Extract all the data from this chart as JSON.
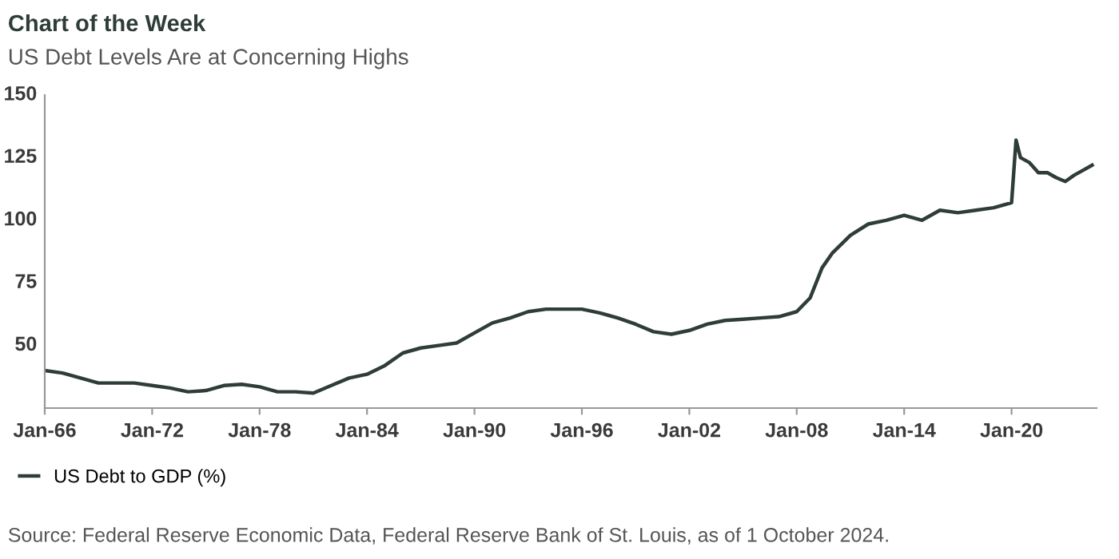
{
  "chart_data": {
    "type": "line",
    "title": "Chart of the Week",
    "subtitle": "US Debt Levels Are at Concerning Highs",
    "annotations": [
      "Source: Federal Reserve Economic Data, Federal Reserve Bank of St. Louis, as of 1 October 2024."
    ],
    "x": [
      "1966-01",
      "1967-01",
      "1968-01",
      "1969-01",
      "1970-01",
      "1971-01",
      "1972-01",
      "1973-01",
      "1974-01",
      "1975-01",
      "1976-01",
      "1977-01",
      "1978-01",
      "1979-01",
      "1980-01",
      "1981-01",
      "1982-01",
      "1983-01",
      "1984-01",
      "1985-01",
      "1986-01",
      "1987-01",
      "1988-01",
      "1989-01",
      "1990-01",
      "1991-01",
      "1992-01",
      "1993-01",
      "1994-01",
      "1995-01",
      "1996-01",
      "1997-01",
      "1998-01",
      "1999-01",
      "2000-01",
      "2001-01",
      "2002-01",
      "2003-01",
      "2004-01",
      "2005-01",
      "2006-01",
      "2007-01",
      "2008-01",
      "2008-10",
      "2009-06",
      "2010-01",
      "2011-01",
      "2012-01",
      "2013-01",
      "2014-01",
      "2015-01",
      "2016-01",
      "2017-01",
      "2018-01",
      "2019-01",
      "2020-01",
      "2020-04",
      "2020-07",
      "2021-01",
      "2021-07",
      "2022-01",
      "2022-07",
      "2023-01",
      "2023-07",
      "2024-01",
      "2024-07"
    ],
    "series": [
      {
        "name": "US Debt to GDP (%)",
        "color": "#2f3d37",
        "values": [
          40,
          39,
          37,
          35,
          35,
          35,
          34,
          33,
          31.5,
          32,
          34,
          34.5,
          33.5,
          31.5,
          31.5,
          31,
          34,
          37,
          38.5,
          42,
          47,
          49,
          50,
          51,
          55,
          59,
          61,
          63.5,
          64.5,
          64.5,
          64.5,
          63,
          61,
          58.5,
          55.5,
          54.5,
          56,
          58.5,
          60,
          60.5,
          61,
          61.5,
          63.5,
          69,
          81,
          87,
          94,
          98.5,
          100,
          102,
          100,
          104,
          103,
          104,
          105,
          107,
          132,
          125,
          123,
          119,
          119,
          117,
          115.5,
          118,
          120,
          122
        ]
      }
    ],
    "xlim": [
      "1966-01",
      "2024-10"
    ],
    "ylim": [
      25,
      150
    ],
    "yticks": [
      50,
      75,
      100,
      125,
      150
    ],
    "xticks": [
      {
        "value": "1966-01",
        "label": "Jan-66"
      },
      {
        "value": "1972-01",
        "label": "Jan-72"
      },
      {
        "value": "1978-01",
        "label": "Jan-78"
      },
      {
        "value": "1984-01",
        "label": "Jan-84"
      },
      {
        "value": "1990-01",
        "label": "Jan-90"
      },
      {
        "value": "1996-01",
        "label": "Jan-96"
      },
      {
        "value": "2002-01",
        "label": "Jan-02"
      },
      {
        "value": "2008-01",
        "label": "Jan-08"
      },
      {
        "value": "2014-01",
        "label": "Jan-14"
      },
      {
        "value": "2020-01",
        "label": "Jan-20"
      }
    ],
    "grid": false,
    "legend": "bottom left"
  }
}
